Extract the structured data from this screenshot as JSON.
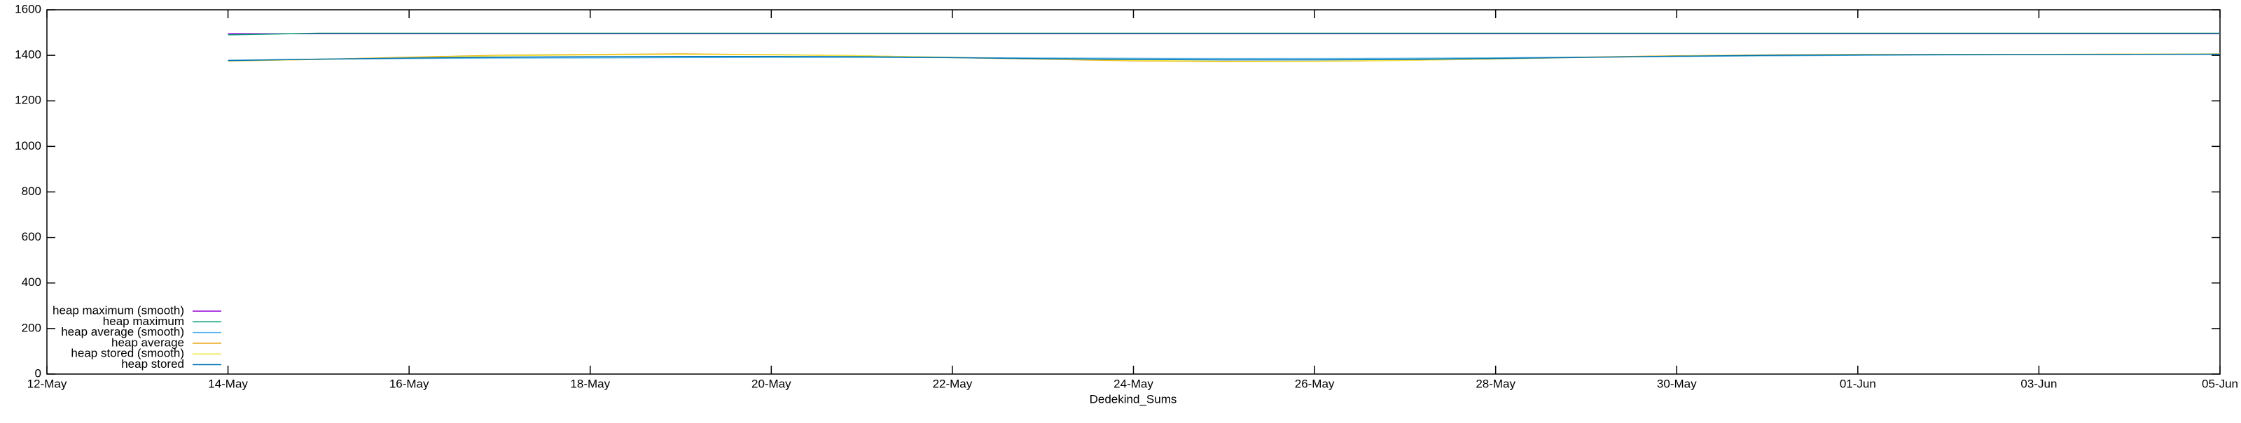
{
  "chart_data": {
    "type": "line",
    "xlabel": "Dedekind_Sums",
    "x": [
      2,
      3,
      4,
      5,
      6,
      7,
      8,
      9,
      10,
      11,
      12,
      13,
      14,
      15,
      16,
      17,
      18,
      19,
      20,
      21,
      22,
      23,
      24
    ],
    "xlim": [
      0,
      24
    ],
    "xticks": [
      {
        "value": 0,
        "label": "12-May"
      },
      {
        "value": 2,
        "label": "14-May"
      },
      {
        "value": 4,
        "label": "16-May"
      },
      {
        "value": 6,
        "label": "18-May"
      },
      {
        "value": 8,
        "label": "20-May"
      },
      {
        "value": 10,
        "label": "22-May"
      },
      {
        "value": 12,
        "label": "24-May"
      },
      {
        "value": 14,
        "label": "26-May"
      },
      {
        "value": 16,
        "label": "28-May"
      },
      {
        "value": 18,
        "label": "30-May"
      },
      {
        "value": 20,
        "label": "01-Jun"
      },
      {
        "value": 22,
        "label": "03-Jun"
      },
      {
        "value": 24,
        "label": "05-Jun"
      }
    ],
    "ylim": [
      0,
      1600
    ],
    "yticks": [
      0,
      200,
      400,
      600,
      800,
      1000,
      1200,
      1400,
      1600
    ],
    "legend": "lower left",
    "series": [
      {
        "name": "heap maximum (smooth)",
        "color": "#9400d3",
        "values": [
          1495,
          1495,
          1495,
          1495,
          1495,
          1495,
          1495,
          1495,
          1495,
          1495,
          1495,
          1495,
          1495,
          1495,
          1495,
          1495,
          1495,
          1495,
          1495,
          1495,
          1495,
          1495,
          1495
        ]
      },
      {
        "name": "heap maximum",
        "color": "#009e73",
        "values": [
          1490,
          1497,
          1497,
          1497,
          1497,
          1497,
          1497,
          1497,
          1497,
          1497,
          1497,
          1497,
          1497,
          1497,
          1497,
          1497,
          1497,
          1497,
          1497,
          1497,
          1497,
          1497,
          1497
        ]
      },
      {
        "name": "heap average (smooth)",
        "color": "#56b4e9",
        "values": [
          1378,
          1383,
          1386,
          1388,
          1389,
          1390,
          1391,
          1391,
          1390,
          1388,
          1387,
          1386,
          1386,
          1387,
          1389,
          1392,
          1395,
          1398,
          1400,
          1402,
          1403,
          1404,
          1405
        ]
      },
      {
        "name": "heap average",
        "color": "#e69f00",
        "values": [
          1375,
          1382,
          1392,
          1400,
          1404,
          1406,
          1403,
          1398,
          1390,
          1383,
          1376,
          1372,
          1373,
          1378,
          1384,
          1392,
          1398,
          1402,
          1404,
          1404,
          1404,
          1405,
          1406
        ]
      },
      {
        "name": "heap stored (smooth)",
        "color": "#f0e442",
        "values": [
          1376,
          1382,
          1390,
          1398,
          1402,
          1404,
          1402,
          1398,
          1391,
          1384,
          1378,
          1374,
          1374,
          1378,
          1384,
          1391,
          1397,
          1401,
          1403,
          1404,
          1404,
          1405,
          1406
        ]
      },
      {
        "name": "heap stored",
        "color": "#0072b2",
        "values": [
          1377,
          1383,
          1388,
          1392,
          1394,
          1395,
          1395,
          1394,
          1390,
          1385,
          1382,
          1380,
          1380,
          1382,
          1386,
          1391,
          1396,
          1400,
          1402,
          1403,
          1403,
          1404,
          1405
        ]
      }
    ]
  }
}
